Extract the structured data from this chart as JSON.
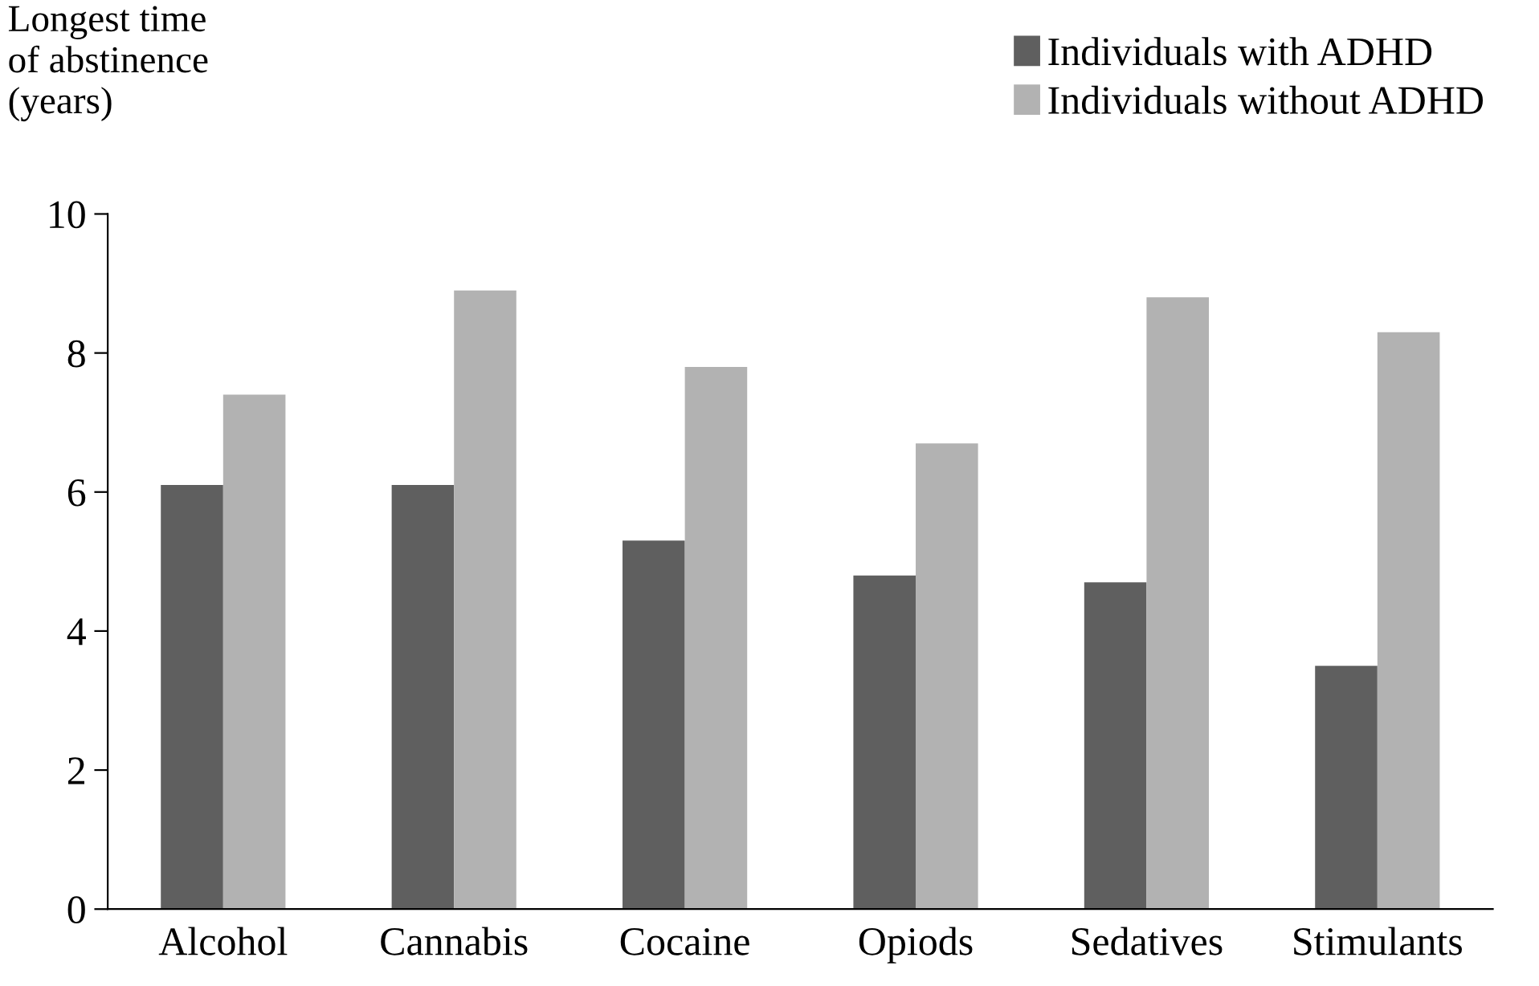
{
  "chart_data": {
    "type": "bar",
    "ylabel": "Longest time\nof abstinence\n(years)",
    "categories": [
      "Alcohol",
      "Cannabis",
      "Cocaine",
      "Opiods",
      "Sedatives",
      "Stimulants"
    ],
    "series": [
      {
        "name": "Individuals with ADHD",
        "color": "#5f5f5f",
        "values": [
          6.1,
          6.1,
          5.3,
          4.8,
          4.7,
          3.5
        ]
      },
      {
        "name": "Individuals without ADHD",
        "color": "#b2b2b2",
        "values": [
          7.4,
          8.9,
          7.8,
          6.7,
          8.8,
          8.3
        ]
      }
    ],
    "ylim": [
      0,
      10
    ],
    "yticks": [
      0,
      2,
      4,
      6,
      8,
      10
    ],
    "grid": false,
    "legend": "top right"
  }
}
